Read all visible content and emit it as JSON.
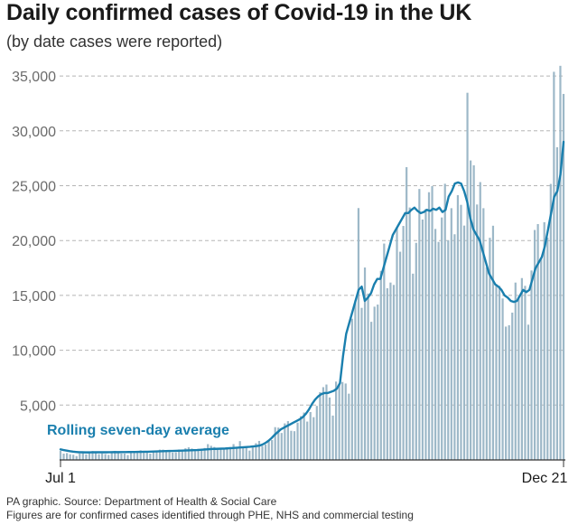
{
  "title": "Daily confirmed cases of Covid-19 in the UK",
  "subtitle": "(by date cases were reported)",
  "footer": {
    "source": "PA graphic. Source: Department of Health & Social Care",
    "note": "Figures are for confirmed cases identified through PHE, NHS and commercial testing"
  },
  "colors": {
    "bars": "#9db8c8",
    "line": "#1a7fae",
    "grid": "#b5b5b5",
    "text": "#1a1a1a"
  },
  "chart_data": {
    "type": "bar",
    "title": "Daily confirmed cases of Covid-19 in the UK",
    "subtitle": "(by date cases were reported)",
    "x_ticks": [
      "Jul 1",
      "Dec 21"
    ],
    "y_ticks": [
      "5,000",
      "10,000",
      "15,000",
      "20,000",
      "25,000",
      "30,000",
      "35,000"
    ],
    "ylim": [
      0,
      36000
    ],
    "grid": true,
    "annotation": "Rolling seven-day average",
    "series": [
      {
        "kind": "bar",
        "values": [
          829,
          576,
          624,
          516,
          470,
          352,
          581,
          630,
          512,
          642,
          820,
          650,
          530,
          598,
          538,
          463,
          642,
          827,
          687,
          580,
          581,
          445,
          768,
          749,
          763,
          880,
          746,
          685,
          581,
          763,
          846,
          938,
          938,
          743,
          758,
          670,
          693,
          950,
          870,
          1062,
          1148,
          1040,
          813,
          1008,
          1009,
          1091,
          1440,
          1288,
          1182,
          1040,
          1089,
          1033,
          1040,
          1176,
          1441,
          1033,
          1715,
          1184,
          1209,
          853,
          1295,
          1522,
          1735,
          1276,
          1406,
          1715,
          1813,
          2988,
          2948,
          2460,
          3330,
          3539,
          2659,
          2621,
          3395,
          3991,
          4322,
          3497,
          4368,
          3899,
          4926,
          6178,
          6634,
          6874,
          5693,
          4044,
          7143,
          6914,
          7108,
          6968,
          6042,
          12872,
          14542,
          22961,
          13864,
          17540,
          15166,
          12593,
          13972,
          14162,
          17234,
          19724,
          15650,
          16171,
          15952,
          21242,
          18980,
          21331,
          26688,
          23012,
          16982,
          19790,
          24701,
          21915,
          22885,
          24405,
          24957,
          21058,
          19875,
          22104,
          25177,
          20018,
          22950,
          20572,
          24141,
          23254,
          21363,
          33470,
          27301,
          26860,
          23287,
          25329,
          22950,
          17555,
          20252,
          21350,
          16022,
          15871,
          14718,
          12155,
          12282,
          13430,
          16170,
          14879,
          16578,
          15871,
          12330,
          17272,
          20964,
          21502,
          18447,
          21672,
          20263,
          25161,
          35383,
          28507,
          35928,
          33364
        ]
      },
      {
        "kind": "line",
        "name": "Rolling seven-day average",
        "values": [
          960,
          900,
          850,
          800,
          760,
          730,
          700,
          700,
          690,
          690,
          695,
          700,
          700,
          700,
          700,
          700,
          705,
          710,
          710,
          710,
          712,
          715,
          720,
          725,
          730,
          735,
          740,
          745,
          750,
          760,
          770,
          780,
          790,
          800,
          810,
          815,
          820,
          830,
          840,
          850,
          860,
          870,
          880,
          890,
          900,
          920,
          940,
          960,
          980,
          1000,
          1010,
          1020,
          1030,
          1040,
          1060,
          1080,
          1100,
          1120,
          1140,
          1160,
          1180,
          1200,
          1230,
          1260,
          1300,
          1400,
          1550,
          1750,
          2000,
          2300,
          2550,
          2800,
          2950,
          3100,
          3250,
          3400,
          3550,
          3700,
          3900,
          4200,
          4600,
          5100,
          5500,
          5800,
          6000,
          6100,
          6100,
          6200,
          6300,
          6500,
          7000,
          9500,
          11500,
          12500,
          13500,
          14500,
          15500,
          15800,
          14500,
          14800,
          15200,
          16000,
          16500,
          16500,
          17500,
          18500,
          19500,
          20500,
          21000,
          21500,
          22000,
          22500,
          22500,
          22800,
          23000,
          22700,
          22500,
          22600,
          22800,
          22700,
          22900,
          22800,
          23000,
          22600,
          22800,
          24000,
          24500,
          25200,
          25300,
          25200,
          24500,
          23500,
          22000,
          21000,
          20500,
          20000,
          19000,
          18000,
          17000,
          16500,
          16000,
          15800,
          15500,
          15000,
          14800,
          14500,
          14400,
          14500,
          15000,
          15500,
          15300,
          15500,
          16500,
          17500,
          18000,
          18500,
          19500,
          21000,
          22500,
          24000,
          24500,
          26000,
          29000
        ]
      }
    ]
  }
}
